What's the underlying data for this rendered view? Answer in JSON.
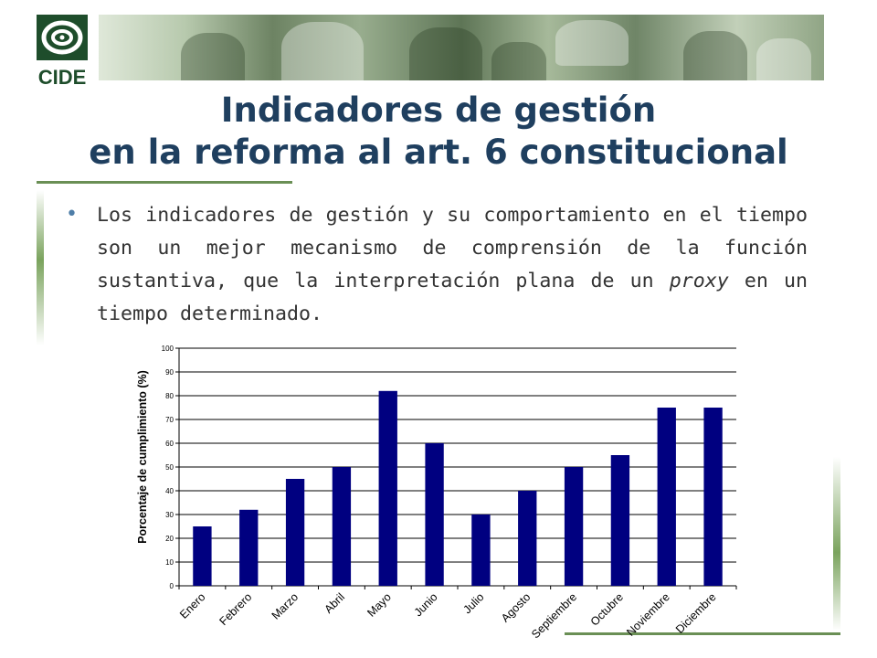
{
  "header": {
    "logo_text": "CIDE",
    "title_line1": "Indicadores de gestión",
    "title_line2": "en la reforma al art. 6 constitucional"
  },
  "bullet": {
    "text_before": "Los indicadores de gestión y su comportamiento en el tiempo son un mejor mecanismo de comprensión de la función sustantiva, que la interpretación plana de un ",
    "text_italic": "proxy",
    "text_after": " en un tiempo determinado."
  },
  "colors": {
    "bar": "#000080",
    "title": "#1f3f5f",
    "accent_green": "#6a8f55",
    "bullet": "#4f7ea8"
  },
  "chart_data": {
    "type": "bar",
    "categories": [
      "Enero",
      "Febrero",
      "Marzo",
      "Abril",
      "Mayo",
      "Junio",
      "Julio",
      "Agosto",
      "Septiembre",
      "Octubre",
      "Noviembre",
      "Diciembre"
    ],
    "values": [
      25,
      32,
      45,
      50,
      82,
      60,
      30,
      40,
      50,
      55,
      75,
      75
    ],
    "ylabel": "Porcentaje de cumplimiento (%)",
    "xlabel": "",
    "ylim": [
      0,
      100
    ],
    "yticks": [
      0,
      10,
      20,
      30,
      40,
      50,
      60,
      70,
      80,
      90,
      100
    ],
    "grid": true,
    "legend": "none"
  }
}
